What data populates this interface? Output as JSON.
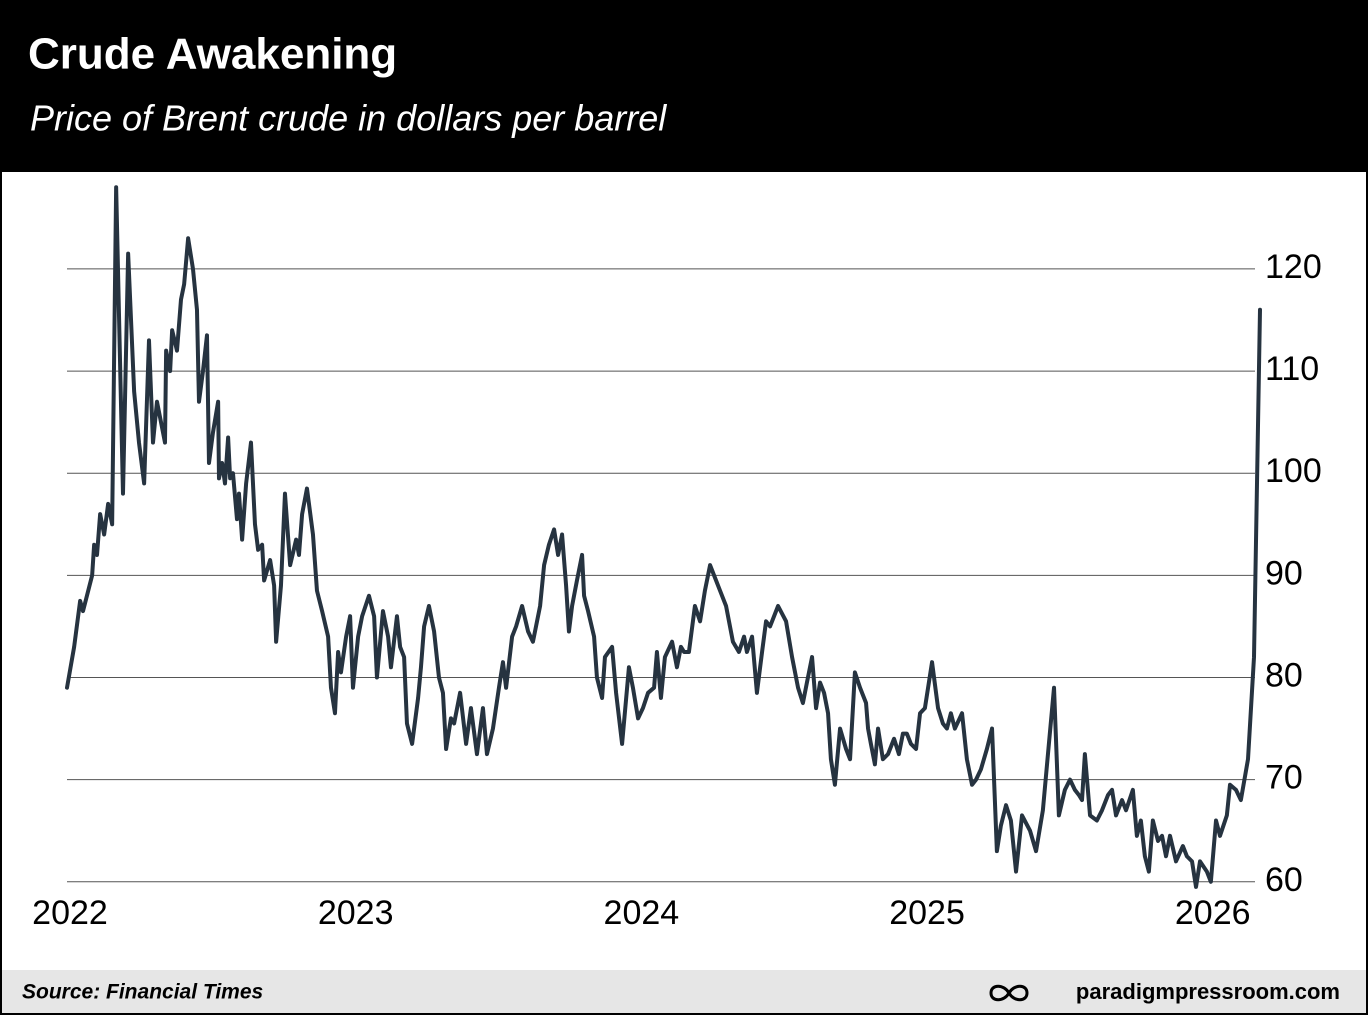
{
  "chart_data": {
    "type": "line",
    "title": "Crude Awakening",
    "subtitle": "Price of Brent crude in dollars per barrel",
    "source": "Source: Financial Times",
    "credit": "paradigmpressroom.com",
    "color": "#263340",
    "grid": true,
    "xlim": [
      2022,
      2026.176
    ],
    "xticks": [
      2022,
      2023,
      2024,
      2025,
      2026
    ],
    "ylim": [
      59,
      129
    ],
    "yticks": [
      60,
      70,
      80,
      90,
      100,
      110,
      120
    ],
    "x": [
      2022.0,
      2022.025,
      2022.046,
      2022.056,
      2022.088,
      2022.095,
      2022.105,
      2022.116,
      2022.13,
      2022.144,
      2022.158,
      2022.172,
      2022.196,
      2022.214,
      2022.235,
      2022.252,
      2022.27,
      2022.287,
      2022.301,
      2022.315,
      2022.329,
      2022.343,
      2022.347,
      2022.361,
      2022.368,
      2022.385,
      2022.399,
      2022.41,
      2022.424,
      2022.441,
      2022.455,
      2022.462,
      2022.476,
      2022.49,
      2022.497,
      2022.511,
      2022.529,
      2022.532,
      2022.543,
      2022.553,
      2022.564,
      2022.571,
      2022.581,
      2022.595,
      2022.602,
      2022.613,
      2022.627,
      2022.644,
      2022.658,
      2022.669,
      2022.683,
      2022.69,
      2022.711,
      2022.725,
      2022.732,
      2022.749,
      2022.763,
      2022.781,
      2022.802,
      2022.812,
      2022.823,
      2022.84,
      2022.861,
      2022.875,
      2022.893,
      2022.914,
      2022.924,
      2022.938,
      2022.949,
      2022.959,
      2022.977,
      2022.991,
      2023.001,
      2023.019,
      2023.033,
      2023.057,
      2023.075,
      2023.085,
      2023.106,
      2023.124,
      2023.134,
      2023.155,
      2023.166,
      2023.18,
      2023.19,
      2023.208,
      2023.229,
      2023.239,
      2023.25,
      2023.267,
      2023.285,
      2023.302,
      2023.316,
      2023.327,
      2023.344,
      2023.355,
      2023.376,
      2023.397,
      2023.414,
      2023.435,
      2023.456,
      2023.47,
      2023.491,
      2023.512,
      2023.526,
      2023.537,
      2023.558,
      2023.572,
      2023.593,
      2023.614,
      2023.631,
      2023.656,
      2023.67,
      2023.687,
      2023.705,
      2023.719,
      2023.733,
      2023.747,
      2023.757,
      2023.768,
      2023.785,
      2023.803,
      2023.81,
      2023.824,
      2023.845,
      2023.855,
      2023.873,
      2023.883,
      2023.908,
      2023.922,
      2023.943,
      2023.967,
      2023.981,
      2023.999,
      2024.016,
      2024.034,
      2024.055,
      2024.065,
      2024.079,
      2024.093,
      2024.118,
      2024.135,
      2024.149,
      2024.16,
      2024.177,
      2024.198,
      2024.216,
      2024.233,
      2024.251,
      2024.272,
      2024.286,
      2024.307,
      2024.331,
      2024.352,
      2024.37,
      2024.38,
      2024.398,
      2024.415,
      2024.433,
      2024.447,
      2024.461,
      2024.489,
      2024.517,
      2024.538,
      2024.559,
      2024.576,
      2024.59,
      2024.608,
      2024.622,
      2024.636,
      2024.65,
      2024.664,
      2024.674,
      2024.688,
      2024.706,
      2024.727,
      2024.741,
      2024.758,
      2024.776,
      2024.797,
      2024.804,
      2024.814,
      2024.828,
      2024.839,
      2024.856,
      2024.874,
      2024.895,
      2024.912,
      2024.926,
      2024.94,
      2024.954,
      2024.972,
      2024.986,
      2025.003,
      2025.028,
      2025.049,
      2025.066,
      2025.08,
      2025.094,
      2025.108,
      2025.133,
      2025.15,
      2025.168,
      2025.182,
      2025.199,
      2025.22,
      2025.238,
      2025.255,
      2025.269,
      2025.287,
      2025.304,
      2025.322,
      2025.343,
      2025.371,
      2025.392,
      2025.416,
      2025.437,
      2025.455,
      2025.472,
      2025.493,
      2025.511,
      2025.528,
      2025.542,
      2025.553,
      2025.563,
      2025.581,
      2025.605,
      2025.623,
      2025.644,
      2025.658,
      2025.672,
      2025.693,
      2025.707,
      2025.731,
      2025.745,
      2025.759,
      2025.773,
      2025.787,
      2025.801,
      2025.819,
      2025.833,
      2025.847,
      2025.861,
      2025.882,
      2025.906,
      2025.92,
      2025.938,
      2025.952,
      2025.966,
      2025.99,
      2026.004,
      2026.022,
      2026.036,
      2026.06,
      2026.071,
      2026.092,
      2026.109,
      2026.134,
      2026.155,
      2026.176
    ],
    "values": [
      79,
      83,
      87.5,
      86.5,
      90,
      93,
      92,
      96,
      94,
      97,
      95,
      128,
      98,
      121.5,
      108,
      103,
      99,
      113,
      103,
      107,
      105,
      103,
      112,
      110,
      114,
      112,
      117,
      118.5,
      123,
      120,
      116,
      107,
      110,
      113.5,
      101,
      104,
      107,
      99.5,
      101,
      99,
      103.5,
      99.5,
      100,
      95.5,
      98,
      93.5,
      99,
      103,
      95,
      92.5,
      93,
      89.5,
      91.5,
      89,
      83.5,
      89,
      98,
      91,
      93.5,
      92,
      96,
      98.5,
      94,
      88.5,
      86.5,
      84,
      79,
      76.5,
      82.5,
      80.5,
      84,
      86,
      79,
      84,
      86,
      88,
      86,
      80,
      86.5,
      84,
      81,
      86,
      83,
      82,
      75.5,
      73.5,
      78,
      81,
      85,
      87,
      84.5,
      80,
      78.5,
      73,
      76,
      75.5,
      78.5,
      73.5,
      77,
      72.5,
      77,
      72.5,
      75,
      79,
      81.5,
      79,
      84,
      85,
      87,
      84.5,
      83.5,
      87,
      91,
      93,
      94.5,
      92,
      94,
      89,
      84.5,
      87,
      89.5,
      92,
      88,
      86.5,
      84,
      80,
      78,
      82,
      83,
      78.5,
      73.5,
      81,
      79,
      76,
      77,
      78.5,
      79,
      82.5,
      78,
      82,
      83.5,
      81,
      83,
      82.5,
      82.5,
      87,
      85.5,
      88.5,
      91,
      89.5,
      88.5,
      87,
      83.5,
      82.5,
      84,
      82.5,
      84,
      78.5,
      82.5,
      85.5,
      85,
      87,
      85.5,
      82,
      79,
      77.5,
      79.5,
      82,
      77,
      79.5,
      78.5,
      76.5,
      72,
      69.5,
      75,
      73,
      72,
      80.5,
      79,
      77.5,
      75,
      73.5,
      71.5,
      75,
      72,
      72.5,
      74,
      72.5,
      74.5,
      74.5,
      73.5,
      73,
      76.5,
      77,
      81.5,
      77,
      75.5,
      75,
      76.5,
      75,
      76.5,
      72,
      69.5,
      70,
      71,
      73,
      75,
      63,
      65.5,
      67.5,
      66,
      61,
      66.5,
      65,
      63,
      67,
      73.5,
      79,
      66.5,
      69,
      70,
      69,
      68.5,
      68,
      72.5,
      66.5,
      66,
      67,
      68.5,
      69,
      66.5,
      68,
      67,
      69,
      64.5,
      66,
      62.5,
      61,
      66,
      64,
      64.5,
      62.5,
      64.5,
      62,
      63.5,
      62.5,
      62,
      59.5,
      62,
      61,
      60,
      66,
      64.5,
      66.5,
      69.5,
      69,
      68,
      72,
      82,
      116
    ]
  }
}
